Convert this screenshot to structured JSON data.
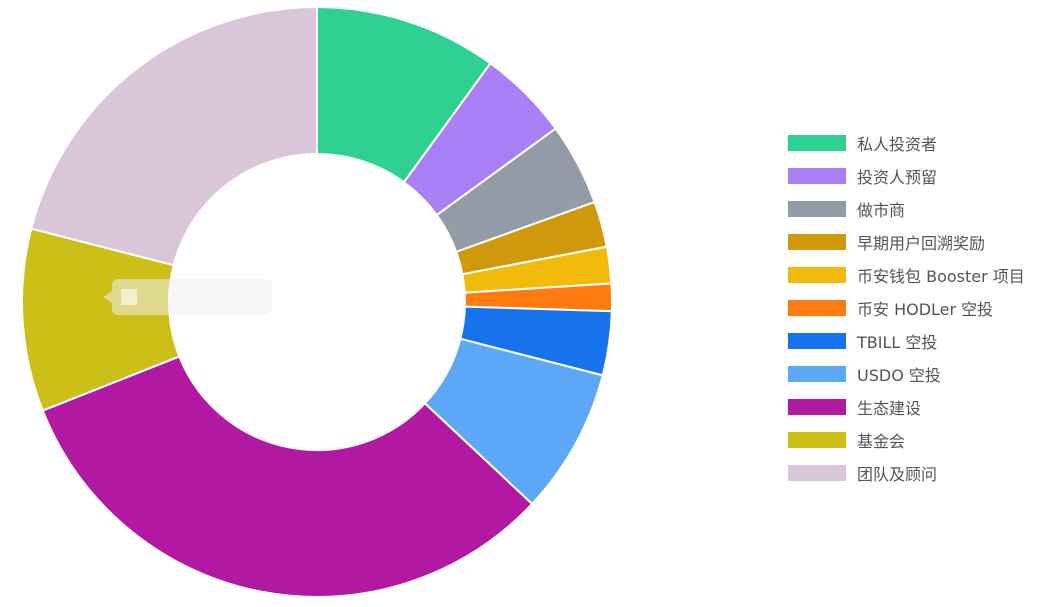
{
  "chart_data": {
    "type": "pie",
    "variant": "donut",
    "legend_position": "right",
    "categories": [
      "私人投资者",
      "投资人预留",
      "做市商",
      "早期用户回溯奖励",
      "币安钱包 Booster 项目",
      "币安 HODLer 空投",
      "TBILL 空投",
      "USDO 空投",
      "生态建设",
      "基金会",
      "团队及顾问"
    ],
    "values": [
      10.0,
      5.0,
      4.5,
      2.5,
      2.0,
      1.5,
      3.5,
      8.0,
      32.0,
      10.0,
      21.0
    ],
    "colors": [
      "#2ED191",
      "#A87FF5",
      "#939BA6",
      "#CF990B",
      "#F2BA0B",
      "#FF7A0F",
      "#1673EB",
      "#5CA8F7",
      "#B219A3",
      "#CCBF18",
      "#D9C7D9"
    ]
  }
}
